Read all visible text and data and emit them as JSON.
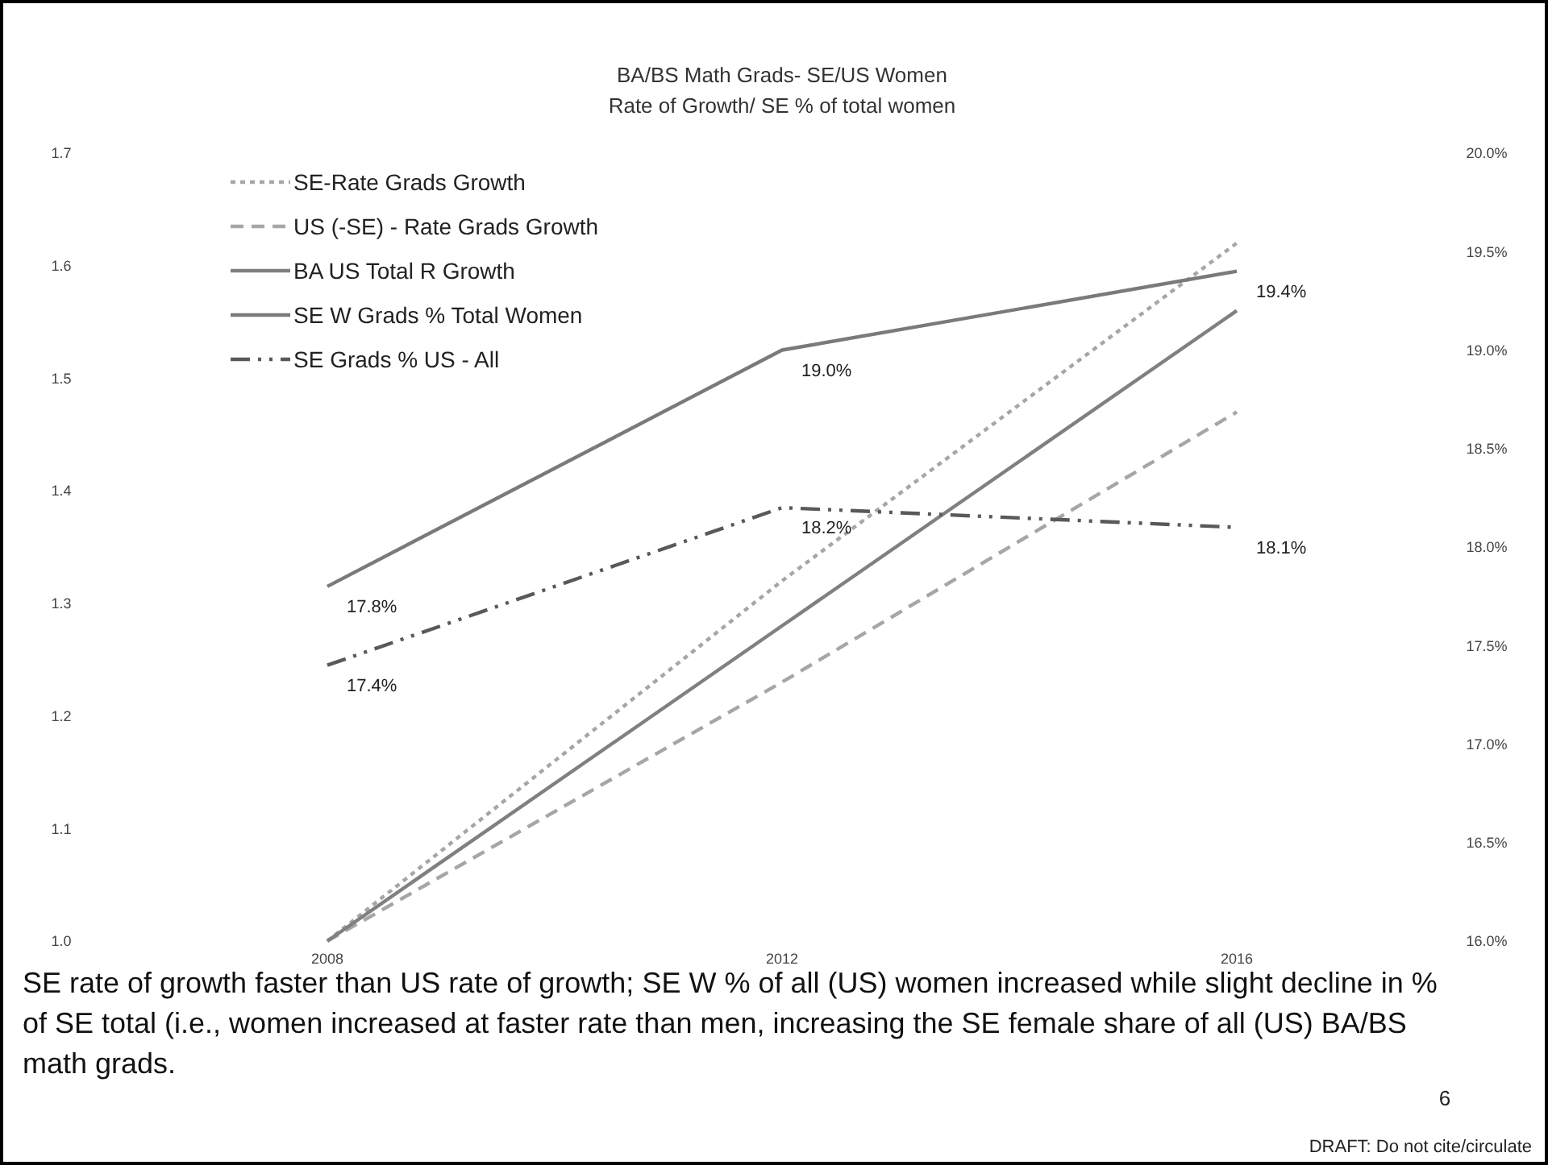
{
  "chart_data": {
    "type": "line",
    "title": "BA/BS Math Grads- SE/US Women",
    "subtitle": "Rate of Growth/ SE % of total women",
    "categories": [
      "2008",
      "2012",
      "2016"
    ],
    "series": [
      {
        "name": "SE-Rate Grads Growth",
        "color": "#a6a6a6",
        "line_style": "dotted",
        "values": [
          1.0,
          1.32,
          1.62
        ]
      },
      {
        "name": "US (-SE) - Rate Grads Growth",
        "color": "#a6a6a6",
        "line_style": "dashed",
        "values": [
          1.0,
          1.23,
          1.47
        ]
      },
      {
        "name": "BA US Total R Growth",
        "color": "#808080",
        "line_style": "solid",
        "values": [
          1.0,
          1.28,
          1.56
        ]
      },
      {
        "name": "SE W Grads % Total Women",
        "color": "#7a7a7a",
        "line_style": "solid",
        "axis": "y2",
        "values": [
          17.8,
          19.0,
          19.4
        ],
        "value_labels": [
          "17.8%",
          "19.0%",
          "19.4%"
        ]
      },
      {
        "name": "SE Grads % US - All",
        "color": "#595959",
        "line_style": "dashdot",
        "axis": "y2",
        "values": [
          17.4,
          18.2,
          18.1
        ],
        "value_labels": [
          "17.4%",
          "18.2%",
          "18.1%"
        ]
      }
    ],
    "ylim": [
      1.0,
      1.7
    ],
    "yticks": [
      {
        "value": 1.0,
        "label": "1.0"
      },
      {
        "value": 1.1,
        "label": "1.1"
      },
      {
        "value": 1.2,
        "label": "1.2"
      },
      {
        "value": 1.3,
        "label": "1.3"
      },
      {
        "value": 1.4,
        "label": "1.4"
      },
      {
        "value": 1.5,
        "label": "1.5"
      },
      {
        "value": 1.6,
        "label": "1.6"
      },
      {
        "value": 1.7,
        "label": "1.7"
      }
    ],
    "y2lim": [
      16.0,
      20.0
    ],
    "y2ticks": [
      {
        "value": 16.0,
        "label": "16.0%"
      },
      {
        "value": 16.5,
        "label": "16.5%"
      },
      {
        "value": 17.0,
        "label": "17.0%"
      },
      {
        "value": 17.5,
        "label": "17.5%"
      },
      {
        "value": 18.0,
        "label": "18.0%"
      },
      {
        "value": 18.5,
        "label": "18.5%"
      },
      {
        "value": 19.0,
        "label": "19.0%"
      },
      {
        "value": 19.5,
        "label": "19.5%"
      },
      {
        "value": 20.0,
        "label": "20.0%"
      }
    ],
    "grid": false,
    "legend": "top left",
    "marker": "none",
    "annotations": [
      "SE rate of growth faster than US rate of growth; SE W % of all (US) women increased while slight decline in % of SE total (i.e., women increased at faster rate than men, increasing the SE female share of all (US) BA/BS math grads.",
      "6",
      "DRAFT: Do not cite/circulate"
    ]
  }
}
